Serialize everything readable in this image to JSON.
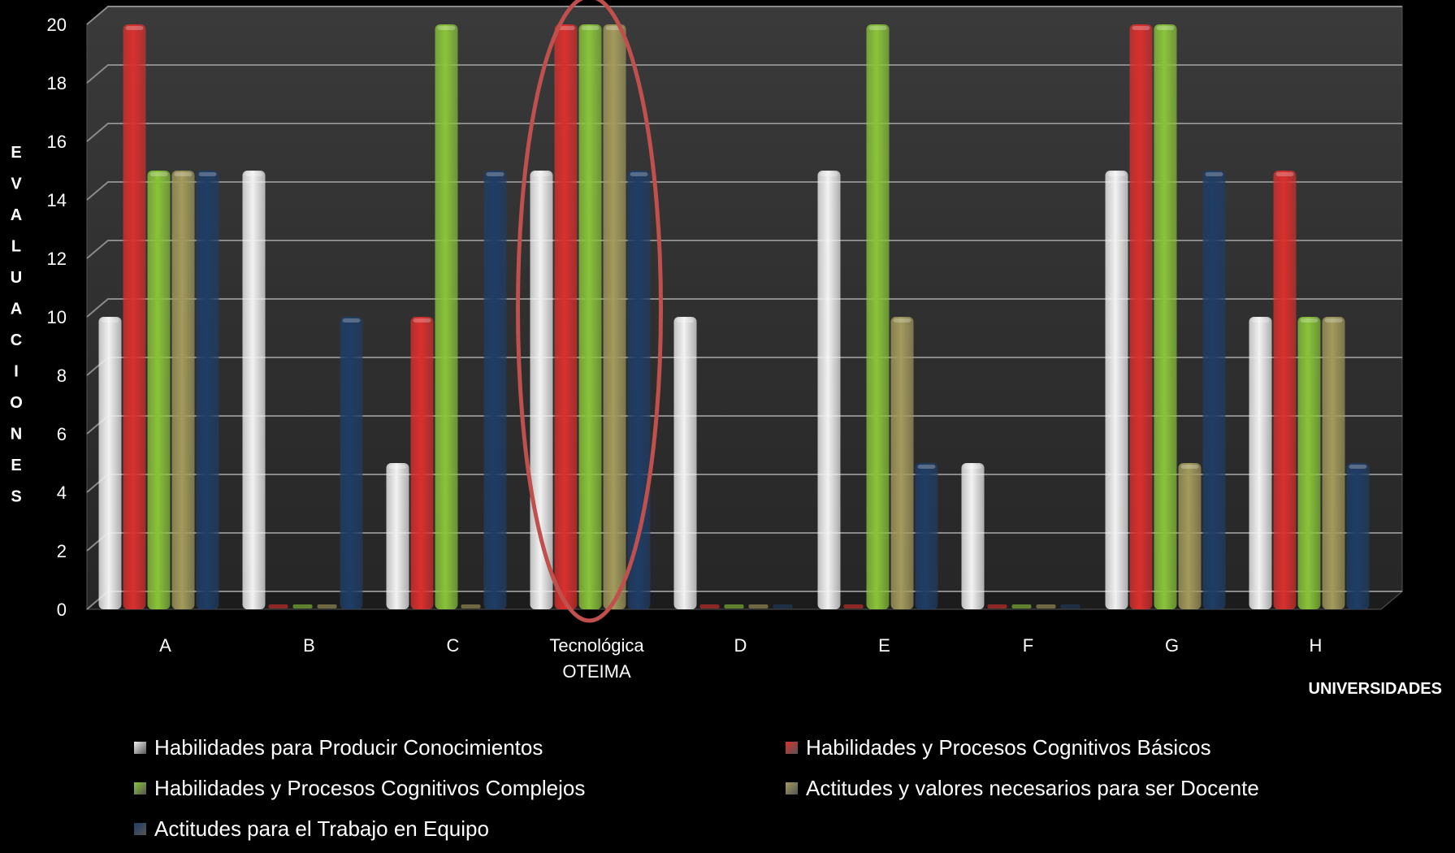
{
  "chart_data": {
    "type": "bar",
    "title": "",
    "xlabel": "UNIVERSIDADES",
    "ylabel": "EVALUACIONES",
    "ylim": [
      0,
      20
    ],
    "yticks": [
      0,
      2,
      4,
      6,
      8,
      10,
      12,
      14,
      16,
      18,
      20
    ],
    "grid": true,
    "legend_position": "bottom",
    "categories": [
      "A",
      "B",
      "C",
      "Tecnológica\nOTEIMA",
      "D",
      "E",
      "F",
      "G",
      "H"
    ],
    "series": [
      {
        "name": "Habilidades para Producir Conocimientos",
        "color": "#f2f2f2",
        "values": [
          10,
          15,
          5,
          15,
          10,
          15,
          5,
          15,
          10
        ]
      },
      {
        "name": "Habilidades y Procesos Cognitivos Básicos",
        "color": "#d9302e",
        "values": [
          20,
          0,
          10,
          20,
          0,
          0,
          0,
          20,
          15
        ]
      },
      {
        "name": "Habilidades y Procesos Cognitivos Complejos",
        "color": "#8ac43a",
        "values": [
          15,
          0,
          20,
          20,
          0,
          20,
          0,
          20,
          10
        ]
      },
      {
        "name": "Actitudes y valores necesarios para ser Docente",
        "color": "#a39a5c",
        "values": [
          15,
          0,
          0,
          20,
          0,
          10,
          0,
          5,
          10
        ]
      },
      {
        "name": "Actitudes para el Trabajo en Equipo",
        "color": "#1f3d66",
        "values": [
          15,
          10,
          15,
          15,
          0,
          5,
          0,
          15,
          5
        ]
      }
    ],
    "highlight": {
      "category": "Tecnológica\nOTEIMA",
      "shape": "ellipse",
      "color": "#c0504d"
    }
  }
}
